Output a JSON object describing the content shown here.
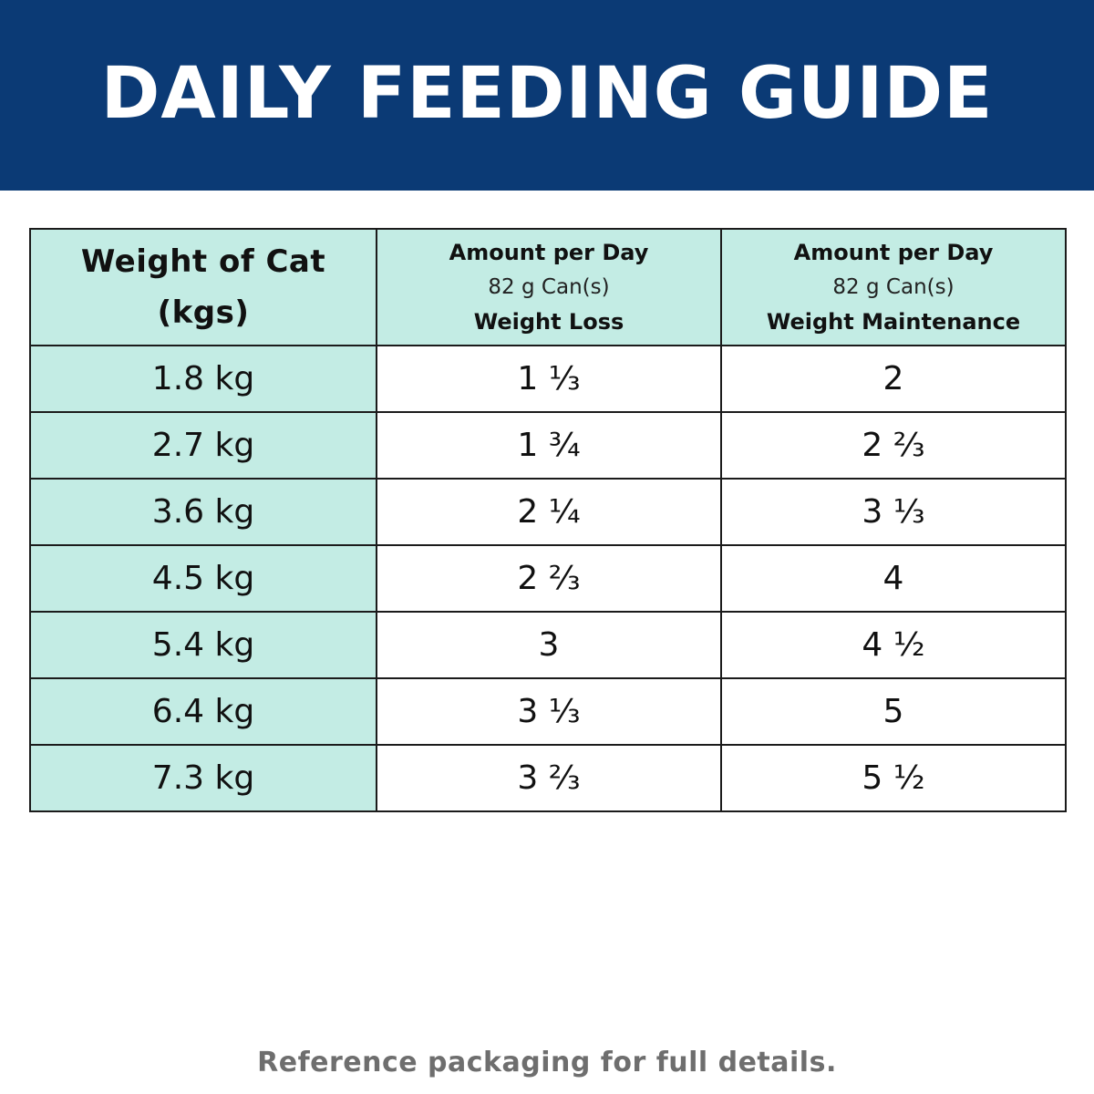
{
  "banner": {
    "title": "DAILY FEEDING GUIDE",
    "background": "#0b3a75"
  },
  "table": {
    "header": {
      "weight_line1": "Weight of Cat",
      "weight_line2": "(kgs)",
      "loss": {
        "line1": "Amount per Day",
        "line2": "82 g Can(s)",
        "line3": "Weight Loss"
      },
      "maintenance": {
        "line1": "Amount per Day",
        "line2": "82 g Can(s)",
        "line3": "Weight Maintenance"
      }
    },
    "rows": [
      {
        "weight": "1.8 kg",
        "loss": "1 ⅓",
        "maintenance": "2"
      },
      {
        "weight": "2.7 kg",
        "loss": "1 ¾",
        "maintenance": "2 ⅔"
      },
      {
        "weight": "3.6 kg",
        "loss": "2 ¼",
        "maintenance": "3 ⅓"
      },
      {
        "weight": "4.5 kg",
        "loss": "2 ⅔",
        "maintenance": "4"
      },
      {
        "weight": "5.4 kg",
        "loss": "3",
        "maintenance": "4 ½"
      },
      {
        "weight": "6.4 kg",
        "loss": "3 ⅓",
        "maintenance": "5"
      },
      {
        "weight": "7.3 kg",
        "loss": "3 ⅔",
        "maintenance": "5 ½"
      }
    ],
    "accent_color": "#c3ece4"
  },
  "footnote": "Reference packaging for full details."
}
